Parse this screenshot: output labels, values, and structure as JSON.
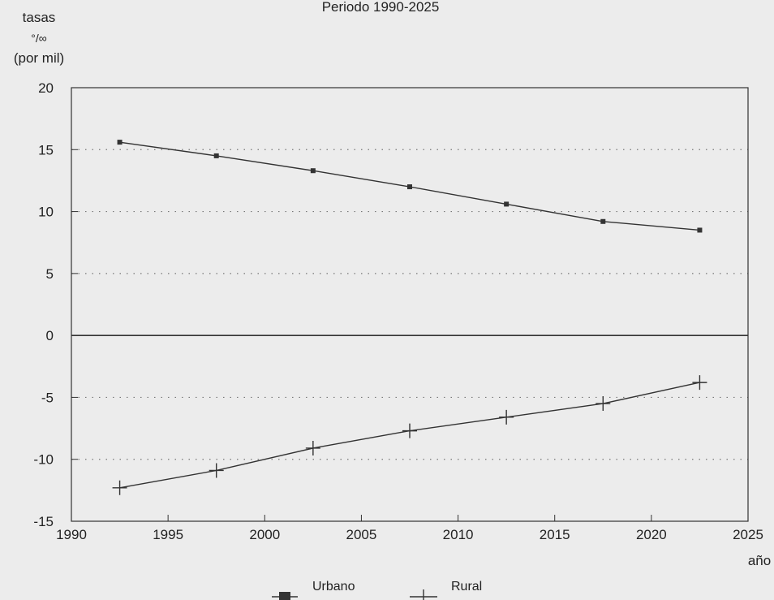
{
  "chart_data": {
    "type": "line",
    "title": "Periodo 1990-2025",
    "ylabel_lines": [
      "tasas",
      "°/∞",
      "(por mil)"
    ],
    "xlabel": "año",
    "xlim": [
      1990,
      2025
    ],
    "ylim": [
      -15,
      20
    ],
    "x_ticks": [
      1990,
      1995,
      2000,
      2005,
      2010,
      2015,
      2020,
      2025
    ],
    "y_ticks": [
      20,
      15,
      10,
      5,
      0,
      -5,
      -10,
      -15
    ],
    "gridlines": "dotted-horizontal",
    "legend_position": "bottom-center",
    "x": [
      1992.5,
      1997.5,
      2002.5,
      2007.5,
      2012.5,
      2017.5,
      2022.5
    ],
    "series": [
      {
        "name": "Urbano",
        "marker": "square",
        "values": [
          15.6,
          14.5,
          13.3,
          12.0,
          10.6,
          9.2,
          8.5
        ]
      },
      {
        "name": "Rural",
        "marker": "plus",
        "values": [
          -12.3,
          -10.9,
          -9.1,
          -7.7,
          -6.6,
          -5.5,
          -3.8
        ]
      }
    ],
    "colors": {
      "line": "#333333",
      "grid": "#777777",
      "background": "#ececec"
    }
  }
}
